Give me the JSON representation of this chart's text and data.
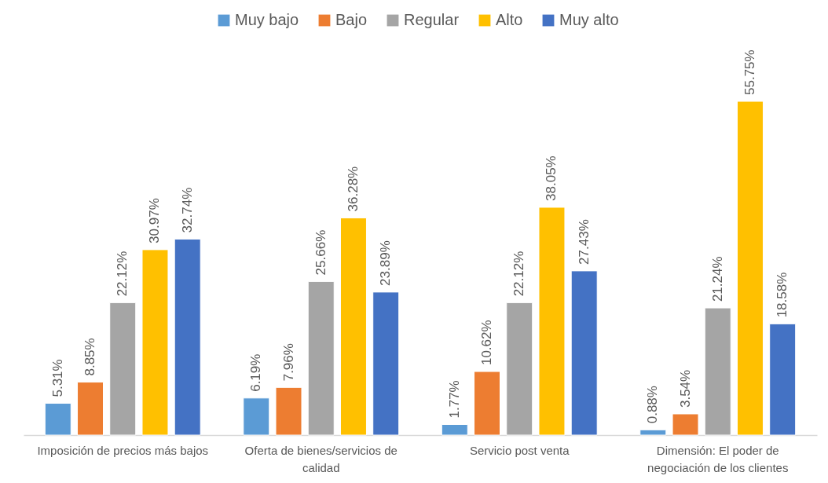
{
  "chart_data": {
    "type": "bar",
    "categories": [
      "Imposición de precios más bajos",
      "Oferta de bienes/servicios de calidad",
      "Servicio post venta",
      "Dimensión: El poder de negociación de los clientes"
    ],
    "series": [
      {
        "name": "Muy bajo",
        "color": "#5b9bd5",
        "values": [
          5.31,
          6.19,
          1.77,
          0.88
        ],
        "value_labels": [
          "5.31%",
          "6.19%",
          "1.77%",
          "0.88%"
        ]
      },
      {
        "name": "Bajo",
        "color": "#ed7d31",
        "values": [
          8.85,
          7.96,
          10.62,
          3.54
        ],
        "value_labels": [
          "8.85%",
          "7.96%",
          "10.62%",
          "3.54%"
        ]
      },
      {
        "name": "Regular",
        "color": "#a5a5a5",
        "values": [
          22.12,
          25.66,
          22.12,
          21.24
        ],
        "value_labels": [
          "22.12%",
          "25.66%",
          "22.12%",
          "21.24%"
        ]
      },
      {
        "name": "Alto",
        "color": "#ffc000",
        "values": [
          30.97,
          36.28,
          38.05,
          55.75
        ],
        "value_labels": [
          "30.97%",
          "36.28%",
          "38.05%",
          "55.75%"
        ]
      },
      {
        "name": "Muy alto",
        "color": "#4472c4",
        "values": [
          32.74,
          23.89,
          27.43,
          18.58
        ],
        "value_labels": [
          "32.74%",
          "23.89%",
          "27.43%",
          "18.58%"
        ]
      }
    ],
    "legend": "top",
    "tick_labels": "x"
  }
}
